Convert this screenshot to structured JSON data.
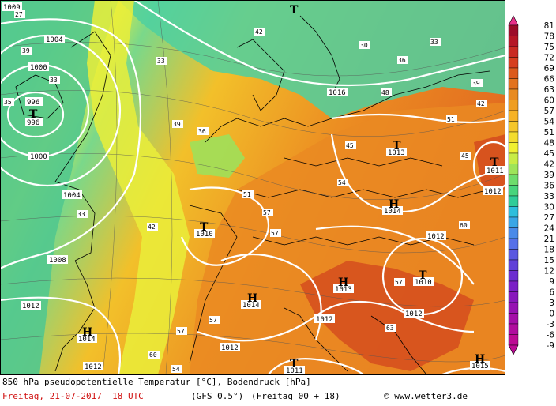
{
  "caption": {
    "line1": "850 hPa pseudopotentielle Temperatur [°C], Bodendruck [hPa]",
    "date": "Freitag, 21-07-2017  18 UTC",
    "model": "(GFS 0.5°)",
    "run": "(Freitag 00 + 18)",
    "site": "© www.wetter3.de"
  },
  "legend": {
    "values": [
      "81",
      "78",
      "75",
      "72",
      "69",
      "66",
      "63",
      "60",
      "57",
      "54",
      "51",
      "48",
      "45",
      "42",
      "39",
      "36",
      "33",
      "30",
      "27",
      "24",
      "21",
      "18",
      "15",
      "12",
      "9",
      "6",
      "3",
      "0",
      "-3",
      "-6",
      "-9"
    ],
    "colors": [
      "#e8308a",
      "#9c0c2a",
      "#b51626",
      "#c92a22",
      "#d63e1e",
      "#dc5a1c",
      "#e2721e",
      "#e88a20",
      "#ef9e22",
      "#f6b226",
      "#f5c62a",
      "#f3dc2e",
      "#f0f032",
      "#c8ec46",
      "#9ee45a",
      "#6edc6c",
      "#48d47c",
      "#30cc98",
      "#2ebedc",
      "#3aa6e6",
      "#4a8ae8",
      "#5670e8",
      "#5a58e0",
      "#6040d8",
      "#6c2ed0",
      "#7a20c6",
      "#8818bc",
      "#9612b2",
      "#a40ea8",
      "#b00c9e",
      "#bc0a94"
    ]
  },
  "pressure_labels": [
    {
      "text": "1009"
    },
    {
      "text": "1004"
    },
    {
      "text": "1000"
    },
    {
      "text": "996"
    },
    {
      "text": "996"
    },
    {
      "text": "1000"
    },
    {
      "text": "1004"
    },
    {
      "text": "1008"
    },
    {
      "text": "1012"
    },
    {
      "text": "1014"
    },
    {
      "text": "1012"
    },
    {
      "text": "1010"
    },
    {
      "text": "1016"
    },
    {
      "text": "1013"
    },
    {
      "text": "1014"
    },
    {
      "text": "1011"
    },
    {
      "text": "1012"
    },
    {
      "text": "1012"
    },
    {
      "text": "1010"
    },
    {
      "text": "1012"
    },
    {
      "text": "1014"
    },
    {
      "text": "1013"
    },
    {
      "text": "1012"
    },
    {
      "text": "1012"
    },
    {
      "text": "1011"
    },
    {
      "text": "1015"
    }
  ],
  "systems": [
    {
      "symbol": "T"
    },
    {
      "symbol": "T"
    },
    {
      "symbol": "T"
    },
    {
      "symbol": "T"
    },
    {
      "symbol": "T"
    },
    {
      "symbol": "T"
    },
    {
      "symbol": "T"
    },
    {
      "symbol": "H"
    },
    {
      "symbol": "H"
    },
    {
      "symbol": "H"
    },
    {
      "symbol": "H"
    },
    {
      "symbol": "H"
    },
    {
      "symbol": "H"
    }
  ],
  "theta_labels": [
    {
      "text": "27"
    },
    {
      "text": "39"
    },
    {
      "text": "33"
    },
    {
      "text": "35"
    },
    {
      "text": "33"
    },
    {
      "text": "39"
    },
    {
      "text": "36"
    },
    {
      "text": "33"
    },
    {
      "text": "42"
    },
    {
      "text": "45"
    },
    {
      "text": "51"
    },
    {
      "text": "57"
    },
    {
      "text": "54"
    },
    {
      "text": "60"
    },
    {
      "text": "63"
    },
    {
      "text": "57"
    },
    {
      "text": "51"
    },
    {
      "text": "48"
    },
    {
      "text": "45"
    },
    {
      "text": "42"
    },
    {
      "text": "39"
    },
    {
      "text": "36"
    },
    {
      "text": "33"
    },
    {
      "text": "30"
    },
    {
      "text": "42"
    },
    {
      "text": "57"
    },
    {
      "text": "57"
    },
    {
      "text": "60"
    },
    {
      "text": "54"
    },
    {
      "text": "57"
    }
  ]
}
